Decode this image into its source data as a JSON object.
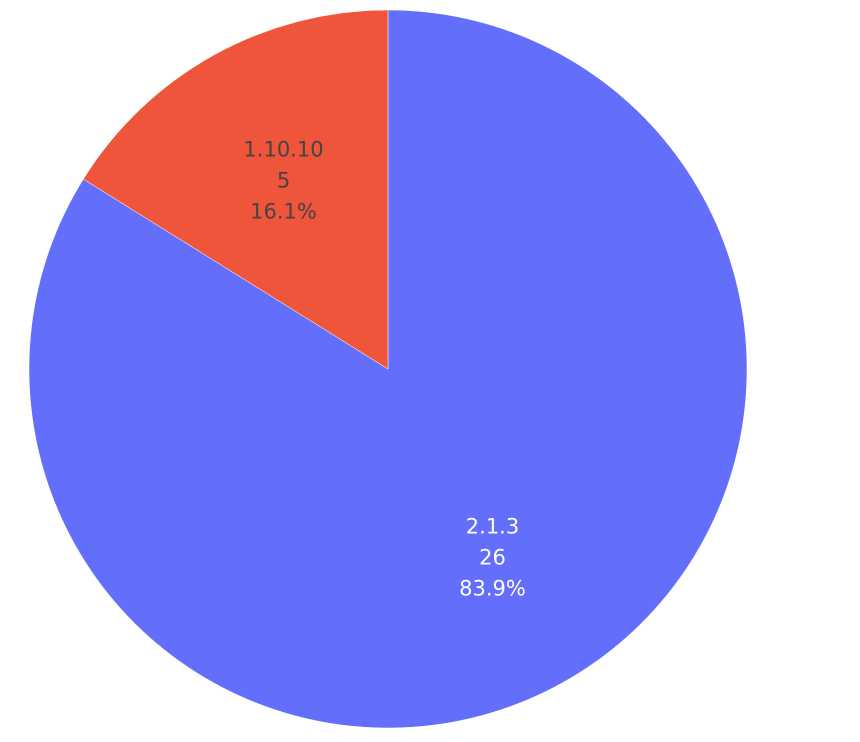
{
  "chart_data": {
    "type": "pie",
    "title": "",
    "direction": "clockwise",
    "sort": "descending",
    "slices": [
      {
        "label": "2.1.3",
        "value": 26,
        "percent": "83.9%",
        "color": "#636efa",
        "text_color": "#ffffff"
      },
      {
        "label": "1.10.10",
        "value": 5,
        "percent": "16.1%",
        "color": "#ef553b",
        "text_color": "#444444"
      }
    ]
  }
}
